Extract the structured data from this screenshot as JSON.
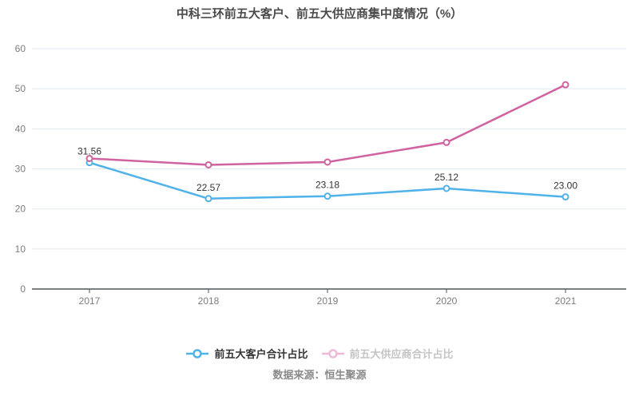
{
  "title": "中科三环前五大客户、前五大供应商集中度情况（%）",
  "source": "数据来源：恒生聚源",
  "colors": {
    "grid": "#e2e8f2",
    "axis_line": "#51555c",
    "axis_text": "#7d7d7d",
    "label_text": "#333333",
    "title_text": "#4a4a4a",
    "source_text": "#8a8a8a",
    "background": "#ffffff"
  },
  "legend": [
    {
      "label": "前五大客户合计占比",
      "icon_color": "#50b2e9",
      "text_color": "#333333",
      "active": true
    },
    {
      "label": "前五大供应商合计占比",
      "icon_color": "#efbad8",
      "text_color": "#c4c4c4",
      "active": false
    }
  ],
  "chart_data": {
    "type": "line",
    "title": "中科三环前五大客户、前五大供应商集中度情况（%）",
    "categories": [
      "2017",
      "2018",
      "2019",
      "2020",
      "2021"
    ],
    "series": [
      {
        "name": "前五大客户合计占比",
        "color": "#50b2e9",
        "values": [
          31.56,
          22.57,
          23.18,
          25.12,
          23.0
        ],
        "labels": [
          "31.56",
          "22.57",
          "23.18",
          "25.12",
          "23.00"
        ],
        "show_labels": true
      },
      {
        "name": "前五大供应商合计占比",
        "color": "#d062a0",
        "values": [
          32.6,
          31.0,
          31.7,
          36.6,
          51.0
        ],
        "labels": [],
        "show_labels": false
      }
    ],
    "xlabel": "",
    "ylabel": "",
    "ylim": [
      0,
      60
    ],
    "ytick_step": 10,
    "grid": true,
    "legend_position": "bottom"
  }
}
